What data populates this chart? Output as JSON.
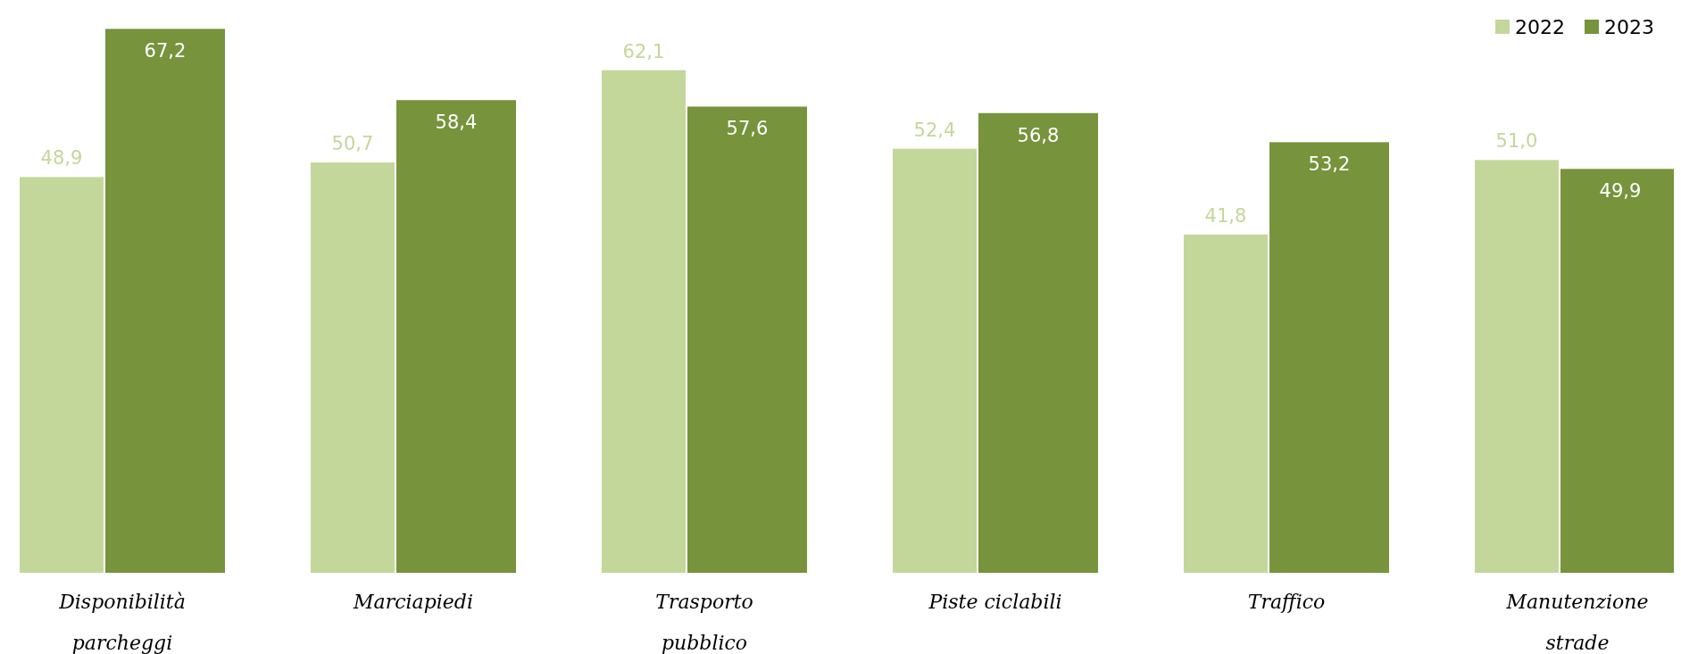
{
  "chart_data": {
    "type": "bar",
    "categories": [
      "Disponibilità\nparcheggi",
      "Marciapiedi",
      "Trasporto\npubblico",
      "Piste ciclabili",
      "Traffico",
      "Manutenzione\nstrade"
    ],
    "series": [
      {
        "name": "2022",
        "color": "#c4d79b",
        "values": [
          48.9,
          50.7,
          62.1,
          52.4,
          41.8,
          51.0
        ],
        "value_labels": [
          "48,9",
          "50,7",
          "62,1",
          "52,4",
          "41,8",
          "51,0"
        ]
      },
      {
        "name": "2023",
        "color": "#77933c",
        "values": [
          67.2,
          58.4,
          57.6,
          56.8,
          53.2,
          49.9
        ],
        "value_labels": [
          "67,2",
          "58,4",
          "57,6",
          "56,8",
          "53,2",
          "49,9"
        ]
      }
    ],
    "legend": "top right",
    "grid": false
  }
}
